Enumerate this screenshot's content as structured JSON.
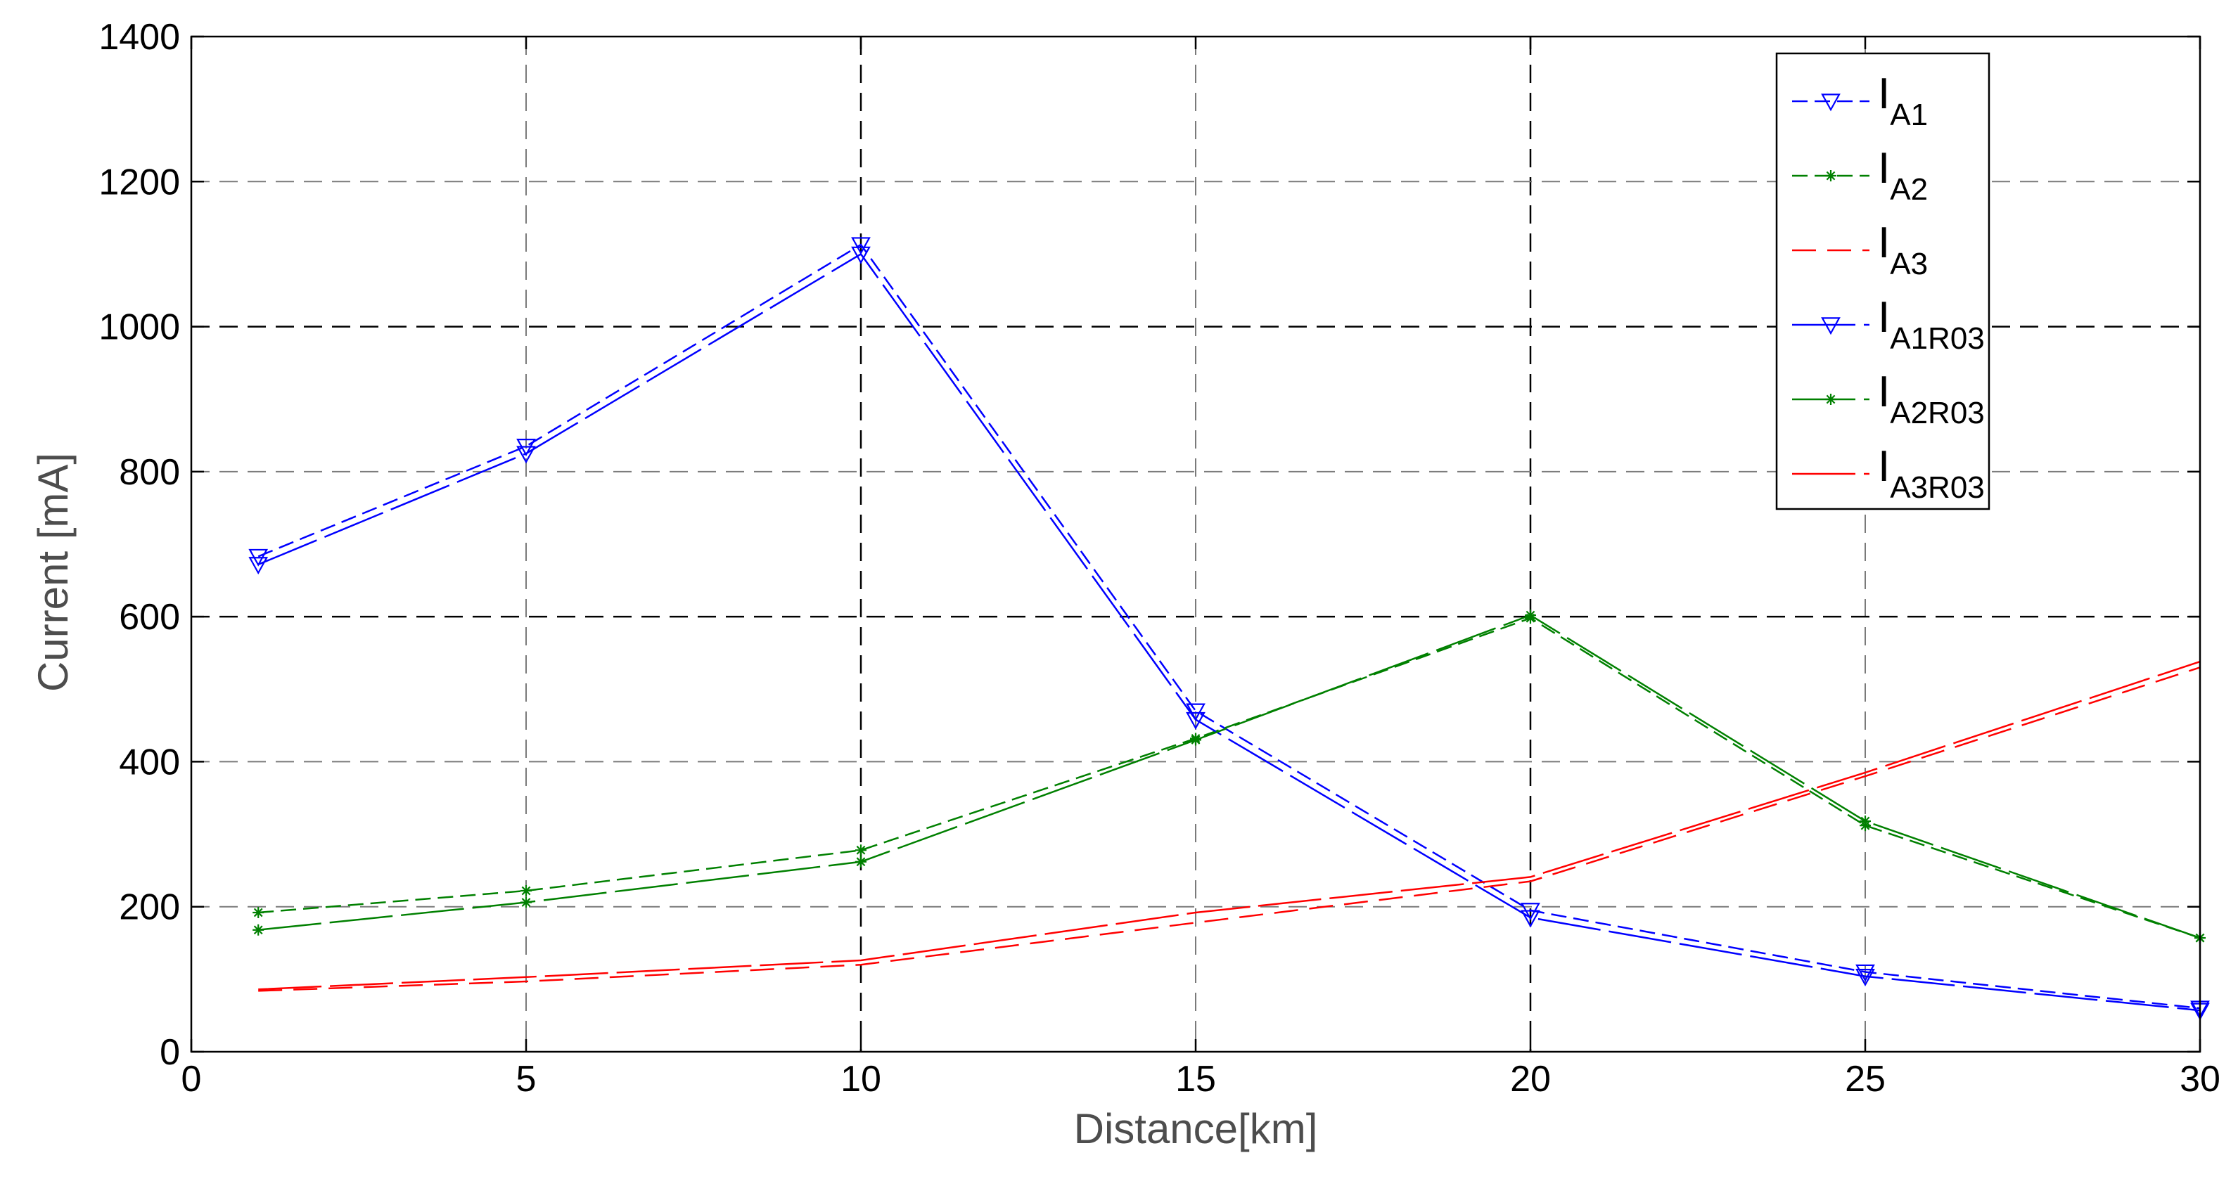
{
  "chart_data": {
    "type": "line",
    "xlabel": "Distance[km]",
    "ylabel": "Current [mA]",
    "xlim": [
      0,
      30
    ],
    "ylim": [
      0,
      1400
    ],
    "x_ticks": [
      "0",
      "5",
      "10",
      "15",
      "20",
      "25",
      "30"
    ],
    "y_ticks": [
      "0",
      "200",
      "400",
      "600",
      "800",
      "1000",
      "1200",
      "1400"
    ],
    "grid": true,
    "legend_position": "top-right",
    "x": [
      1,
      5,
      10,
      15,
      20,
      25,
      30
    ],
    "series": [
      {
        "name": "IA1",
        "name_main": "I",
        "name_sub": "A1",
        "color": "#0000ff",
        "line_style": "dashed-fine",
        "marker": "triangle-down",
        "values": [
          683,
          835,
          1113,
          470,
          195,
          110,
          60
        ]
      },
      {
        "name": "IA2",
        "name_main": "I",
        "name_sub": "A2",
        "color": "#008000",
        "line_style": "dashed-fine",
        "marker": "star",
        "values": [
          192,
          222,
          278,
          432,
          598,
          312,
          157
        ]
      },
      {
        "name": "IA3",
        "name_main": "I",
        "name_sub": "A3",
        "color": "#ff0000",
        "line_style": "dashed",
        "marker": "none",
        "values": [
          84,
          97,
          120,
          178,
          235,
          380,
          530
        ]
      },
      {
        "name": "IA1R03",
        "name_main": "I",
        "name_sub": "A1R03",
        "color": "#0000ff",
        "line_style": "dashed-long",
        "marker": "triangle-down",
        "values": [
          672,
          825,
          1100,
          458,
          185,
          104,
          57
        ]
      },
      {
        "name": "IA2R03",
        "name_main": "I",
        "name_sub": "A2R03",
        "color": "#008000",
        "line_style": "dashed-long",
        "marker": "star",
        "values": [
          168,
          206,
          262,
          430,
          602,
          318,
          157
        ]
      },
      {
        "name": "IA3R03",
        "name_main": "I",
        "name_sub": "A3R03",
        "color": "#ff0000",
        "line_style": "dashed-long",
        "marker": "none",
        "values": [
          86,
          103,
          126,
          192,
          241,
          385,
          538
        ]
      }
    ]
  }
}
